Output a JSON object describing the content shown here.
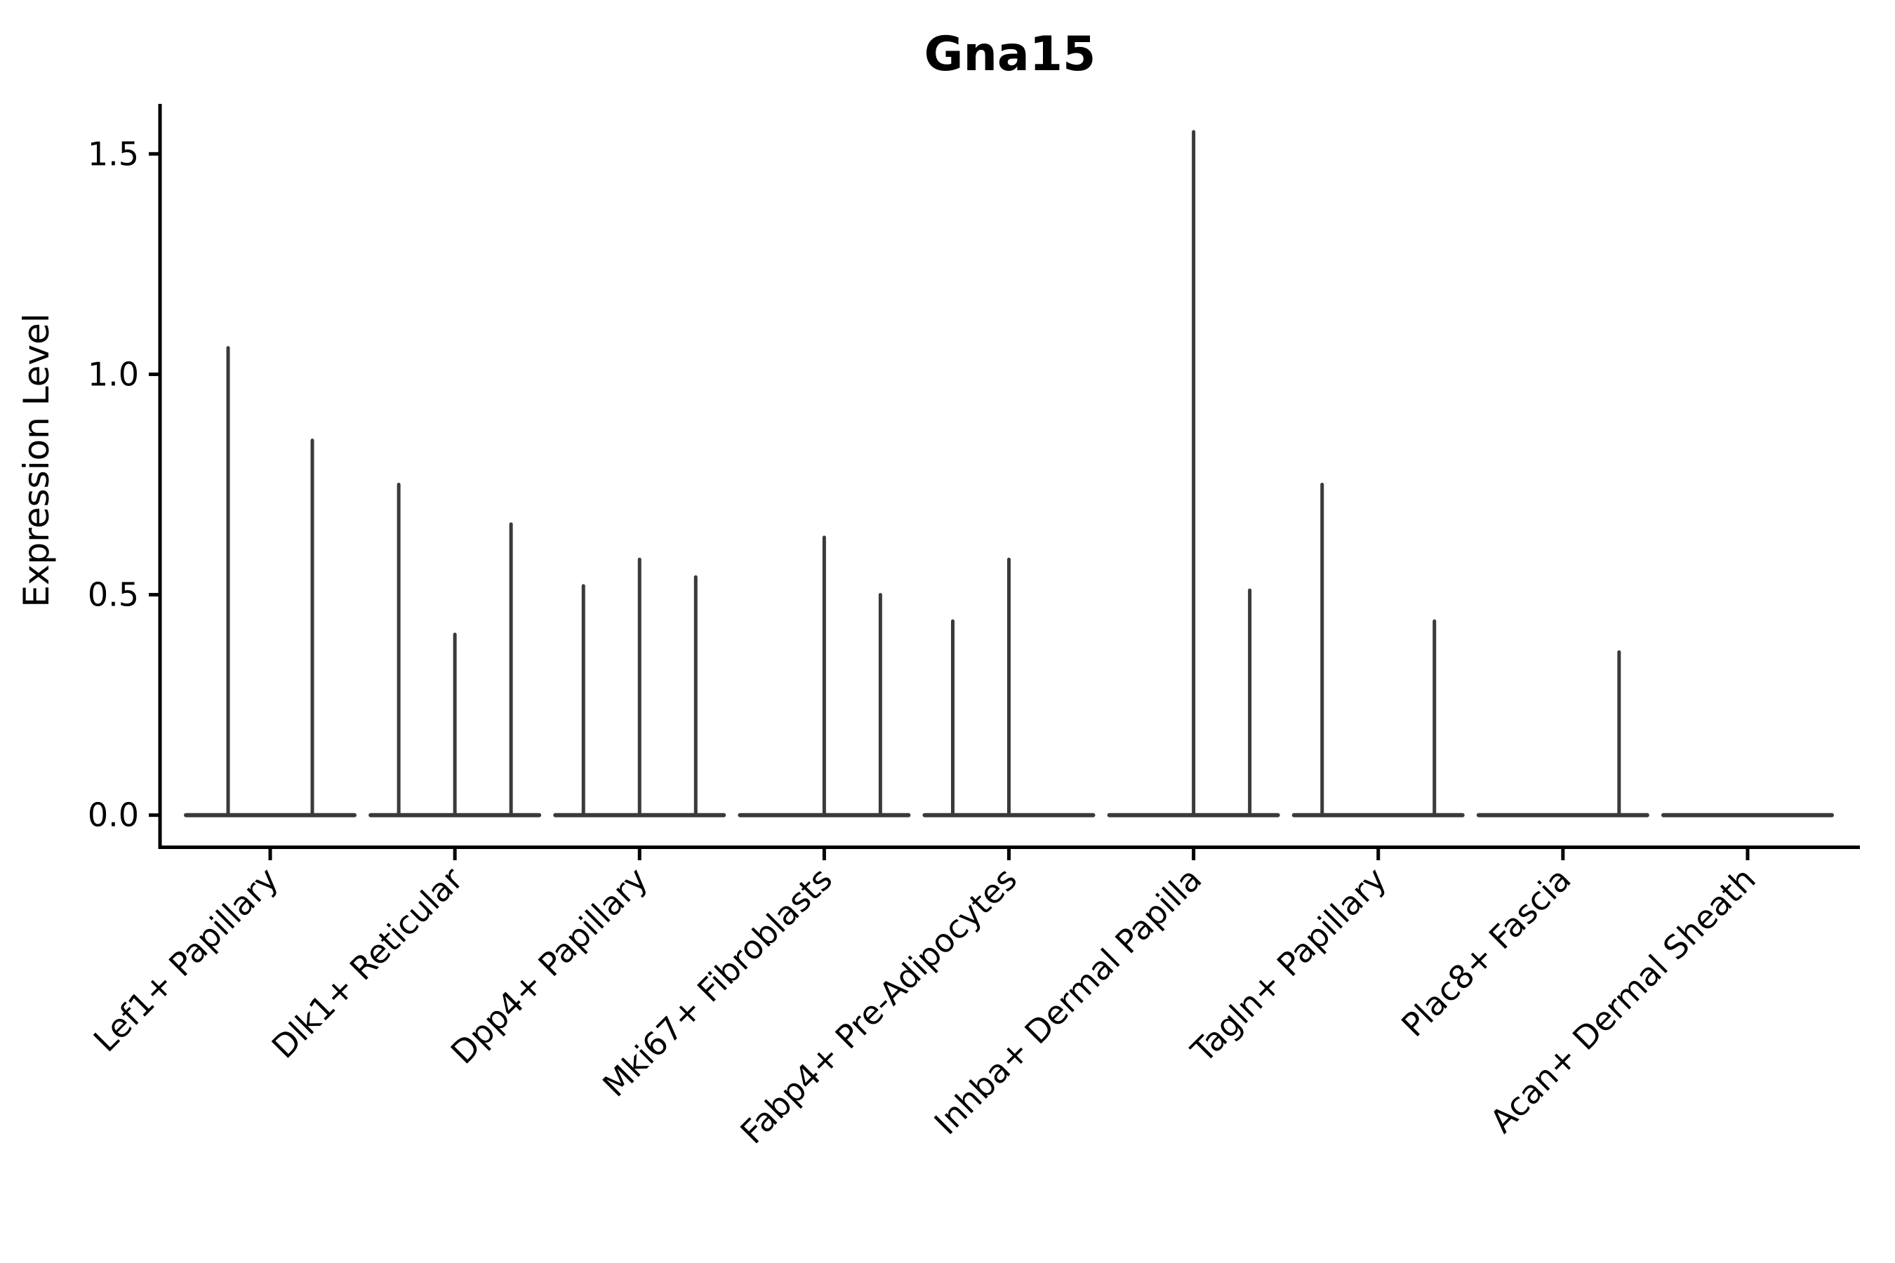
{
  "chart_data": {
    "type": "violin",
    "title": "Gna15",
    "ylabel": "Expression Level",
    "xlabel": "",
    "grid": false,
    "legend": "none",
    "ylim": [
      -0.08,
      1.61
    ],
    "yticks": [
      0.0,
      0.5,
      1.0,
      1.5
    ],
    "ytick_labels": [
      "0.0",
      "0.5",
      "1.0",
      "1.5"
    ],
    "description": "Zero-inflated expression violins: each cell-type group shows a flat violin body at expression 0 with narrow density spikes reaching the maximum expression value; spike dx is the sub-violin position offset (px) from the group center",
    "categories": [
      "Lef1+ Papillary",
      "Dlk1+ Reticular",
      "Dpp4+ Papillary",
      "Mki67+ Fibroblasts",
      "Fabp4+ Pre-Adipocytes",
      "Inhba+ Dermal Papilla",
      "Tagln+ Papillary",
      "Plac8+ Fascia",
      "Acan+ Dermal Sheath"
    ],
    "series": [
      {
        "label": "Lef1+ Papillary",
        "spikes": [
          {
            "dx": -60,
            "max": 1.06
          },
          {
            "dx": 60,
            "max": 0.85
          }
        ]
      },
      {
        "label": "Dlk1+ Reticular",
        "spikes": [
          {
            "dx": -80,
            "max": 0.75
          },
          {
            "dx": 0,
            "max": 0.41
          },
          {
            "dx": 80,
            "max": 0.66
          }
        ]
      },
      {
        "label": "Dpp4+ Papillary",
        "spikes": [
          {
            "dx": -80,
            "max": 0.52
          },
          {
            "dx": 0,
            "max": 0.58
          },
          {
            "dx": 80,
            "max": 0.54
          }
        ]
      },
      {
        "label": "Mki67+ Fibroblasts",
        "spikes": [
          {
            "dx": 0,
            "max": 0.63
          },
          {
            "dx": 80,
            "max": 0.5
          }
        ]
      },
      {
        "label": "Fabp4+ Pre-Adipocytes",
        "spikes": [
          {
            "dx": -80,
            "max": 0.44
          },
          {
            "dx": 0,
            "max": 0.58
          }
        ]
      },
      {
        "label": "Inhba+ Dermal Papilla",
        "spikes": [
          {
            "dx": 0,
            "max": 1.55
          },
          {
            "dx": 80,
            "max": 0.51
          }
        ]
      },
      {
        "label": "Tagln+ Papillary",
        "spikes": [
          {
            "dx": -80,
            "max": 0.75
          },
          {
            "dx": 80,
            "max": 0.44
          }
        ]
      },
      {
        "label": "Plac8+ Fascia",
        "spikes": [
          {
            "dx": 80,
            "max": 0.37
          }
        ]
      },
      {
        "label": "Acan+ Dermal Sheath",
        "spikes": []
      }
    ],
    "colors": {
      "violin": "#3a3a3a",
      "axis": "#000000",
      "text": "#000000",
      "background": "#ffffff"
    }
  }
}
